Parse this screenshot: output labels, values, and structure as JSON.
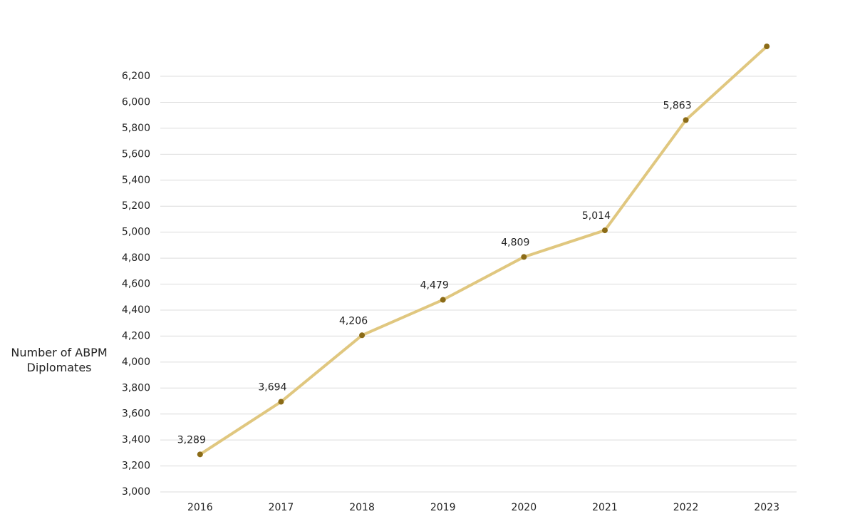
{
  "chart_data": {
    "type": "line",
    "y_label": "Number of ABPM Diplomates",
    "categories": [
      "2016",
      "2017",
      "2018",
      "2019",
      "2020",
      "2021",
      "2022",
      "2023"
    ],
    "series": [
      {
        "color": "#e0c77f",
        "marker_color": "#8b6b17",
        "values": [
          3289,
          3694,
          4206,
          4479,
          4809,
          5014,
          5863,
          6430
        ],
        "value_labels": [
          "3,289",
          "3,694",
          "4,206",
          "4,479",
          "4,809",
          "5,014",
          "5,863",
          null
        ]
      }
    ],
    "ylim": [
      3000,
      6200
    ],
    "yticks": [
      {
        "value": 3000,
        "label": "3,000"
      },
      {
        "value": 3200,
        "label": "3,200"
      },
      {
        "value": 3400,
        "label": "3,400"
      },
      {
        "value": 3600,
        "label": "3,600"
      },
      {
        "value": 3800,
        "label": "3,800"
      },
      {
        "value": 4000,
        "label": "4,000"
      },
      {
        "value": 4200,
        "label": "4,200"
      },
      {
        "value": 4400,
        "label": "4,400"
      },
      {
        "value": 4600,
        "label": "4,600"
      },
      {
        "value": 4800,
        "label": "4,800"
      },
      {
        "value": 5000,
        "label": "5,000"
      },
      {
        "value": 5200,
        "label": "5,200"
      },
      {
        "value": 5400,
        "label": "5,400"
      },
      {
        "value": 5600,
        "label": "5,600"
      },
      {
        "value": 5800,
        "label": "5,800"
      },
      {
        "value": 6000,
        "label": "6,000"
      },
      {
        "value": 6200,
        "label": "6,200"
      }
    ],
    "grid": true
  }
}
